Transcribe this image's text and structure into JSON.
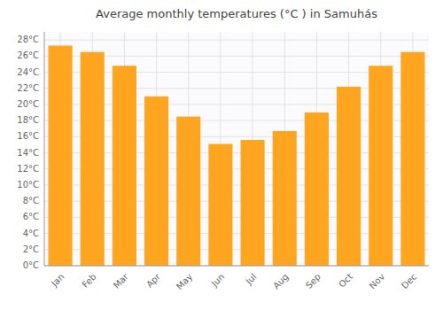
{
  "chart_data": {
    "type": "bar",
    "title": "Average monthly temperatures (°C ) in Samuhás",
    "categories": [
      "Jan",
      "Feb",
      "Mar",
      "Apr",
      "May",
      "Jun",
      "Jul",
      "Aug",
      "Sep",
      "Oct",
      "Nov",
      "Dec"
    ],
    "values": [
      27.3,
      26.5,
      24.8,
      21.0,
      18.5,
      15.1,
      15.6,
      16.7,
      19.0,
      22.2,
      24.8,
      26.5
    ],
    "color": "#FFA520",
    "ylim": [
      0,
      29
    ],
    "yticks": [
      {
        "value": 0,
        "label": "0°C"
      },
      {
        "value": 2,
        "label": "2°C"
      },
      {
        "value": 4,
        "label": "4°C"
      },
      {
        "value": 6,
        "label": "6°C"
      },
      {
        "value": 8,
        "label": "8°C"
      },
      {
        "value": 10,
        "label": "10°C"
      },
      {
        "value": 12,
        "label": "12°C"
      },
      {
        "value": 14,
        "label": "14°C"
      },
      {
        "value": 16,
        "label": "16°C"
      },
      {
        "value": 18,
        "label": "18°C"
      },
      {
        "value": 20,
        "label": "20°C"
      },
      {
        "value": 22,
        "label": "22°C"
      },
      {
        "value": 24,
        "label": "24°C"
      },
      {
        "value": 26,
        "label": "26°C"
      },
      {
        "value": 28,
        "label": "28°C"
      }
    ],
    "grid": true
  }
}
